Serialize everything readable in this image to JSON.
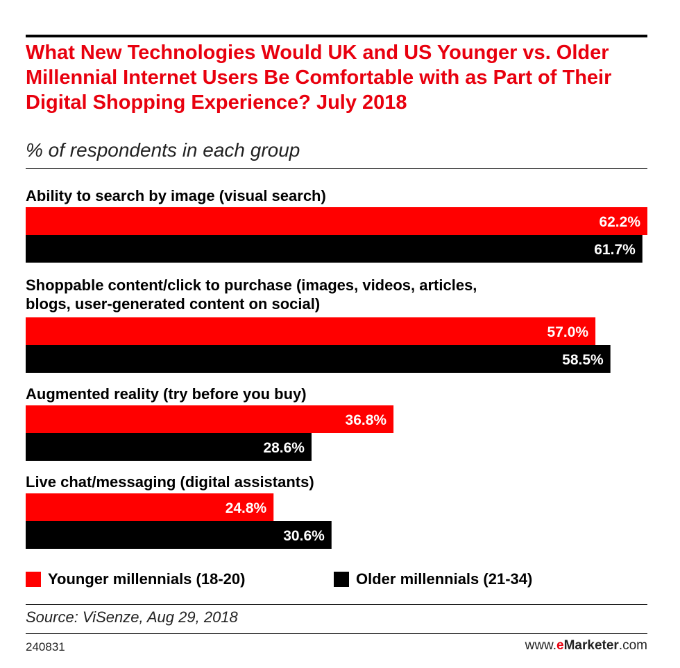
{
  "chart_data": {
    "type": "bar",
    "orientation": "horizontal",
    "title": "What New Technologies Would UK and US Younger vs. Older Millennial Internet Users Be Comfortable with as Part of Their Digital Shopping Experience? July 2018",
    "subtitle": "% of respondents in each group",
    "categories": [
      "Ability to search by image (visual search)",
      "Shoppable content/click to purchase (images, videos, articles, blogs, user-generated content on social)",
      "Augmented reality (try before you buy)",
      "Live chat/messaging (digital assistants)"
    ],
    "series": [
      {
        "name": "Younger millennials (18-20)",
        "color": "#ff0000",
        "values": [
          62.2,
          57.0,
          36.8,
          24.8
        ],
        "labels": [
          "62.2%",
          "57.0%",
          "36.8%",
          "24.8%"
        ]
      },
      {
        "name": "Older millennials (21-34)",
        "color": "#000000",
        "values": [
          61.7,
          58.5,
          28.6,
          30.6
        ],
        "labels": [
          "61.7%",
          "58.5%",
          "28.6%",
          "30.6%"
        ]
      }
    ],
    "xlim": [
      0,
      62.2
    ],
    "grid": false,
    "legend": "bottom-left"
  },
  "source": "Source: ViSenze, Aug 29, 2018",
  "chart_id": "240831",
  "brand": {
    "prefix": "www.",
    "e": "e",
    "name": "Marketer",
    "suffix": ".com"
  }
}
